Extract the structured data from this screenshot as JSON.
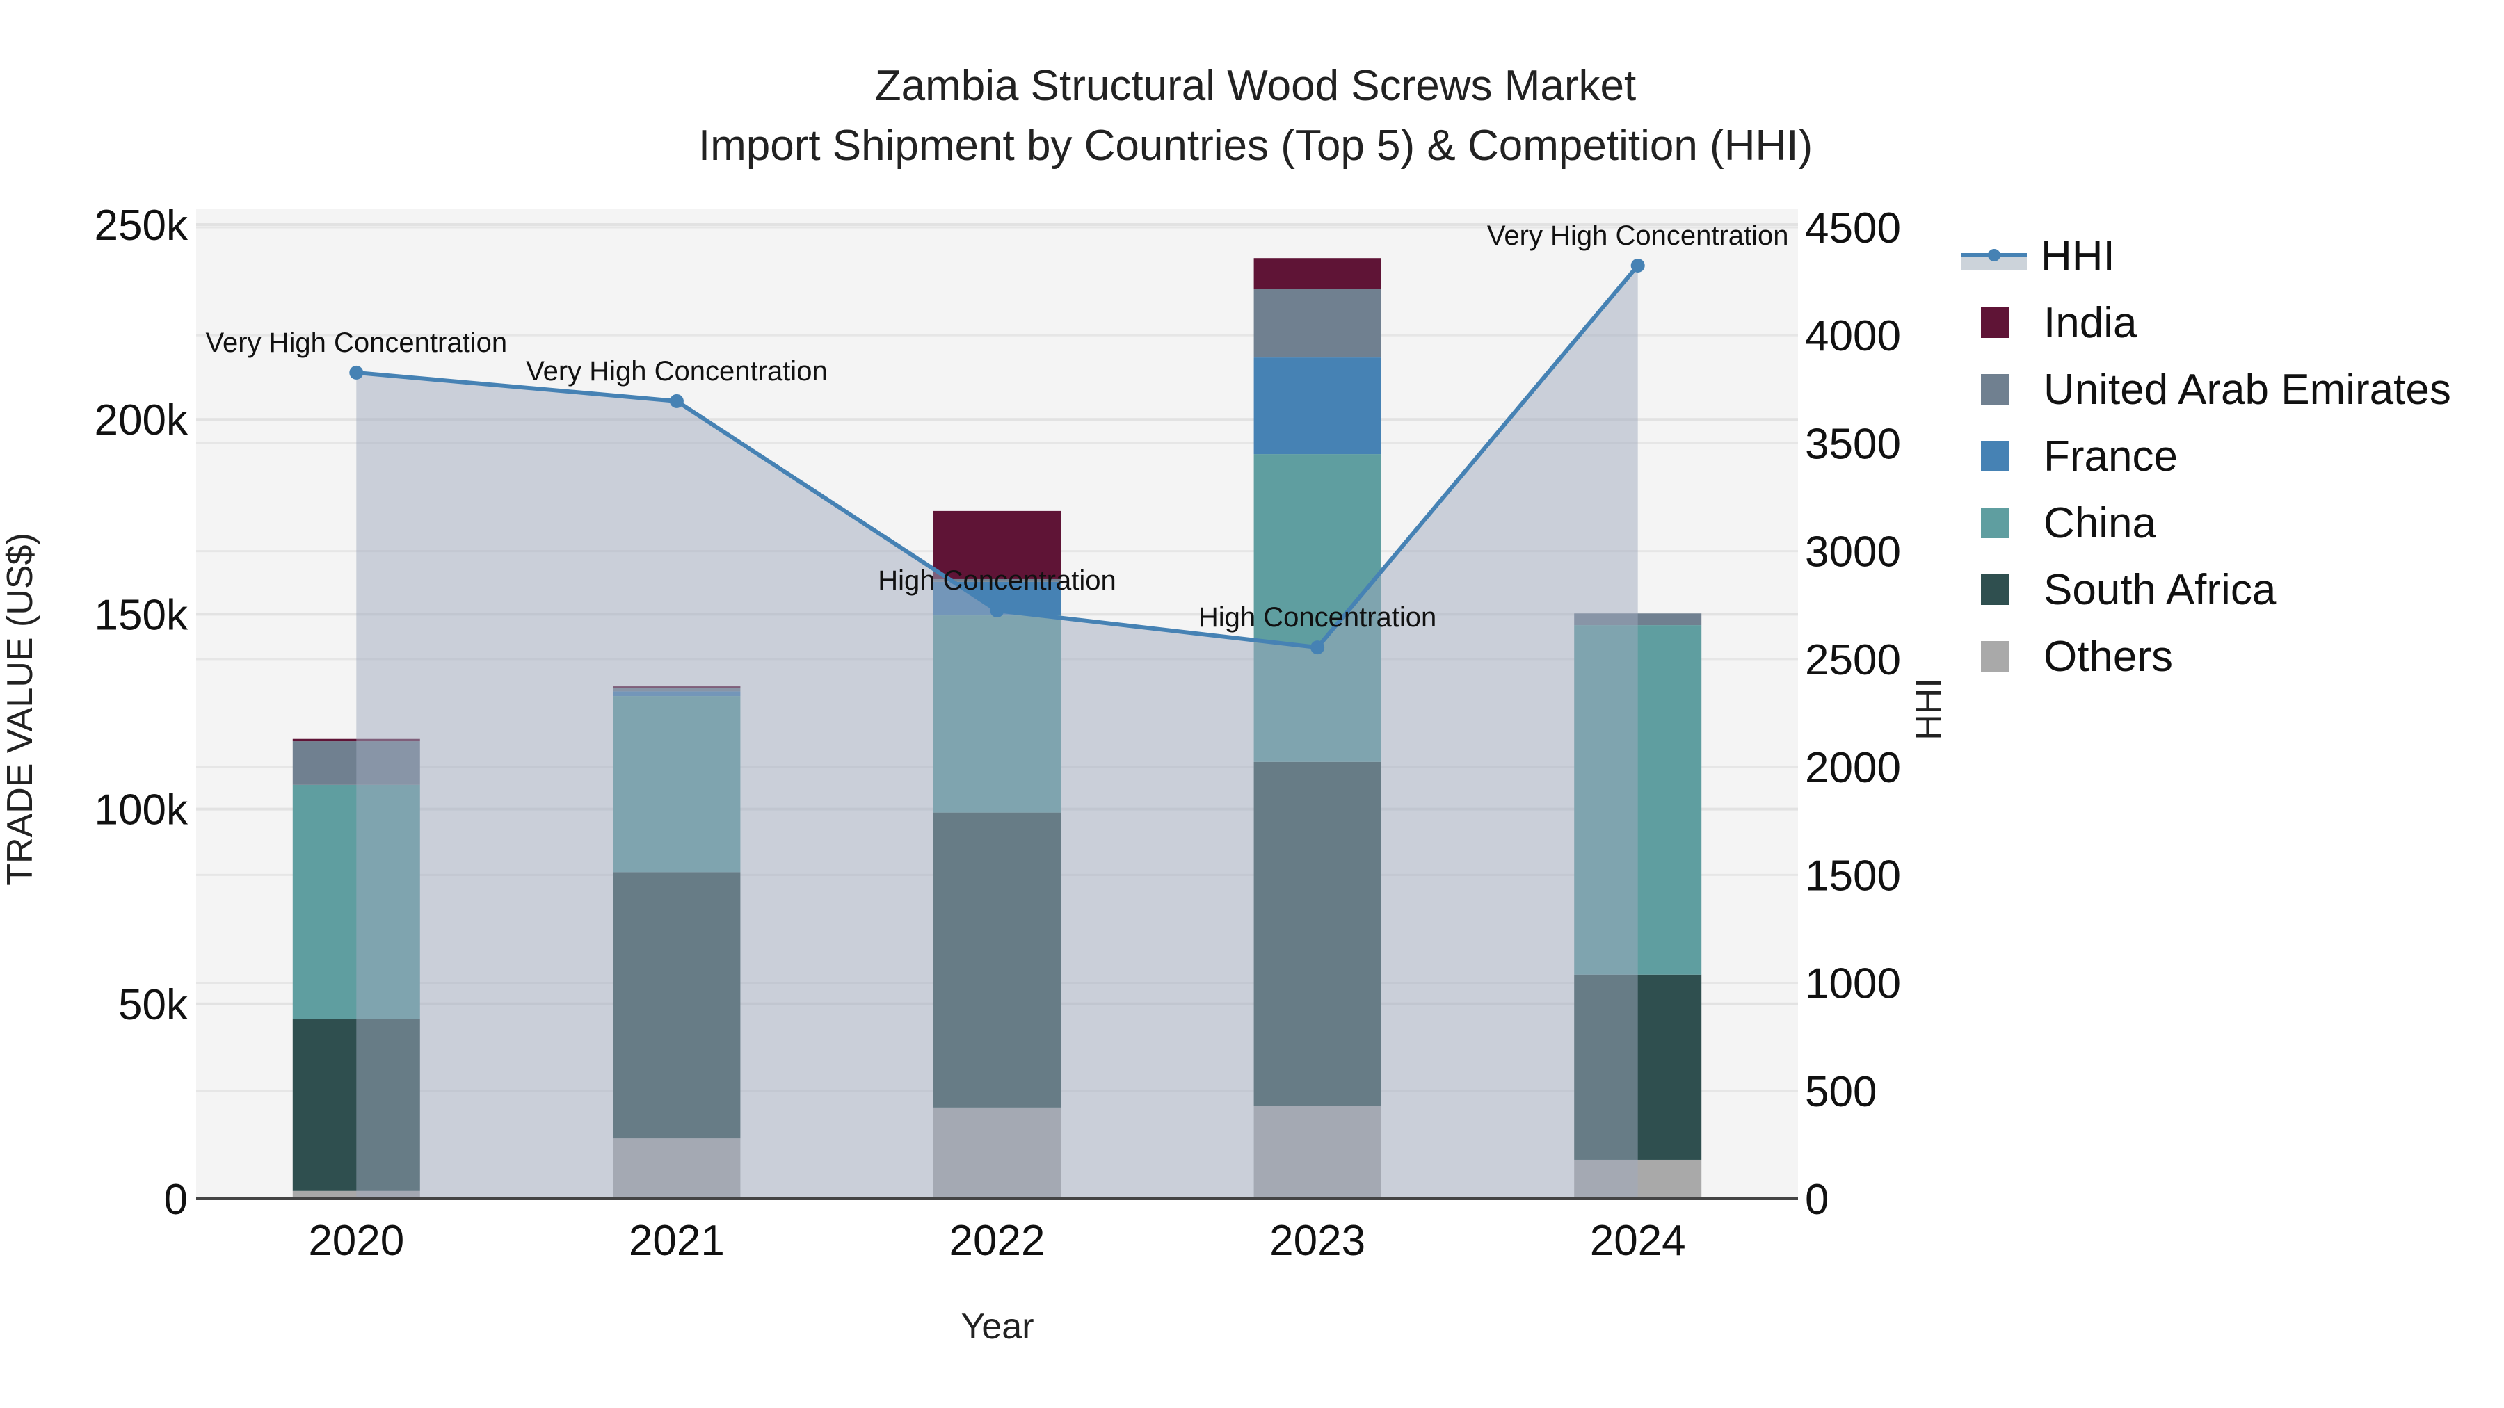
{
  "title": {
    "line1": "Zambia Structural Wood Screws Market",
    "line2": "Import Shipment by Countries (Top 5) & Competition (HHI)"
  },
  "axes": {
    "x_title": "Year",
    "y_left_title": "TRADE VALUE (US$)",
    "y_right_title": "HHI",
    "y_left_ticks": [
      "0",
      "50k",
      "100k",
      "150k",
      "200k",
      "250k"
    ],
    "y_right_ticks": [
      "0",
      "500",
      "1000",
      "1500",
      "2000",
      "2500",
      "3000",
      "3500",
      "4000",
      "4500"
    ]
  },
  "legend": [
    {
      "label": "HHI",
      "color": "#4682B4",
      "type": "line"
    },
    {
      "label": "India",
      "color": "#5F1436",
      "type": "bar"
    },
    {
      "label": "United Arab Emirates",
      "color": "#708090",
      "type": "bar"
    },
    {
      "label": "France",
      "color": "#4682B4",
      "type": "bar"
    },
    {
      "label": "China",
      "color": "#5F9EA0",
      "type": "bar"
    },
    {
      "label": "South Africa",
      "color": "#2F4F4F",
      "type": "bar"
    },
    {
      "label": "Others",
      "color": "#A9A9A9",
      "type": "bar"
    }
  ],
  "chart_data": {
    "type": "bar",
    "title": "Zambia Structural Wood Screws Market — Import Shipment by Countries (Top 5) & Competition (HHI)",
    "xlabel": "Year",
    "ylabel": "TRADE VALUE (US$)",
    "y2label": "HHI",
    "ylim": [
      0,
      255000
    ],
    "y2lim": [
      0,
      4590
    ],
    "stacked": true,
    "categories": [
      "2020",
      "2021",
      "2022",
      "2023",
      "2024"
    ],
    "series": [
      {
        "name": "Others",
        "color": "#A9A9A9",
        "values": [
          2000,
          15500,
          23400,
          23800,
          10000
        ]
      },
      {
        "name": "South Africa",
        "color": "#2F4F4F",
        "values": [
          44200,
          68300,
          75700,
          88300,
          47500
        ]
      },
      {
        "name": "China",
        "color": "#5F9EA0",
        "values": [
          60000,
          45200,
          50600,
          79000,
          89700
        ]
      },
      {
        "name": "France",
        "color": "#4682B4",
        "values": [
          0,
          1200,
          8600,
          24800,
          0
        ]
      },
      {
        "name": "United Arab Emirates",
        "color": "#708090",
        "values": [
          11200,
          800,
          700,
          17500,
          3000
        ]
      },
      {
        "name": "India",
        "color": "#5F1436",
        "values": [
          600,
          500,
          17500,
          8000,
          0
        ]
      }
    ],
    "hhi": {
      "name": "HHI",
      "type": "line+area",
      "color": "#4682B4",
      "values": [
        3827,
        3695,
        2725,
        2554,
        4323
      ],
      "annotations": [
        "Very High Concentration",
        "Very High Concentration",
        "High Concentration",
        "High Concentration",
        "Very High Concentration"
      ]
    },
    "legend_position": "right",
    "grid": true
  }
}
